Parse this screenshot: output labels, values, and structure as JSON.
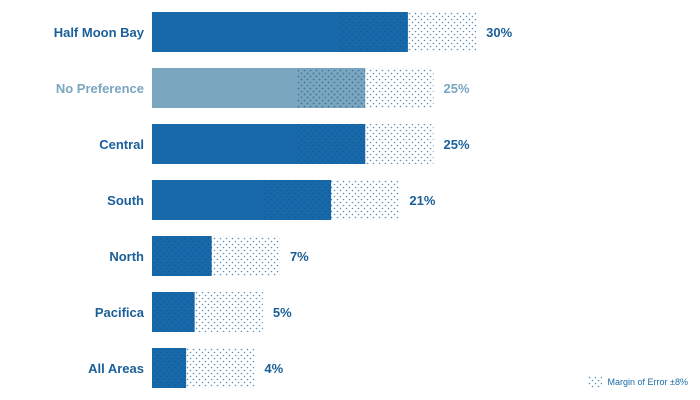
{
  "colors": {
    "bar": "#1769aa",
    "bar_highlight": "#7aa6c0",
    "label": "#1a5f99",
    "label_highlight": "#7aa6c0",
    "dot": "#5b8fb8"
  },
  "legend": {
    "label": "Margin of Error ±8%"
  },
  "chart_data": {
    "type": "bar",
    "orientation": "horizontal",
    "categories": [
      "Half Moon Bay",
      "No Preference",
      "Central",
      "South",
      "North",
      "Pacifica",
      "All Areas"
    ],
    "values": [
      30,
      25,
      25,
      21,
      7,
      5,
      4
    ],
    "value_labels": [
      "30%",
      "25%",
      "25%",
      "21%",
      "7%",
      "5%",
      "4%"
    ],
    "highlighted": [
      "No Preference"
    ],
    "error_margin": 8,
    "xlim": [
      0,
      40
    ],
    "title": "",
    "xlabel": "",
    "ylabel": ""
  }
}
